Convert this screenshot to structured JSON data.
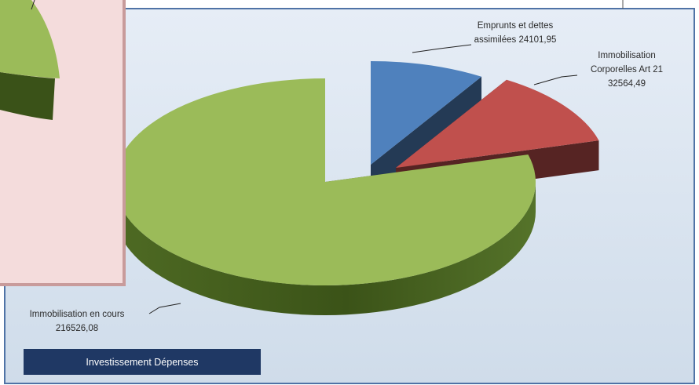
{
  "chart_data": {
    "type": "pie",
    "title": "",
    "slices": [
      {
        "label_lines": [
          "Immobilisation en cours",
          "216526,08"
        ],
        "value": 216526.08,
        "color": "#9bbb59"
      },
      {
        "label_lines": [
          "Emprunts et dettes",
          "assimilées 24101,95"
        ],
        "value": 24101.95,
        "color": "#4f81bd"
      },
      {
        "label_lines": [
          "Immobilisation",
          "Corporelles Art 21",
          "32564,49"
        ],
        "value": 32564.49,
        "color": "#c0504d"
      }
    ],
    "legend_box": {
      "label": "Investissement Dépenses",
      "color": "#1f3864"
    },
    "background": "#dde6f2",
    "overlay_panel_color": "#f4dcdc",
    "overlay_panel_border": "#c89b9b"
  }
}
